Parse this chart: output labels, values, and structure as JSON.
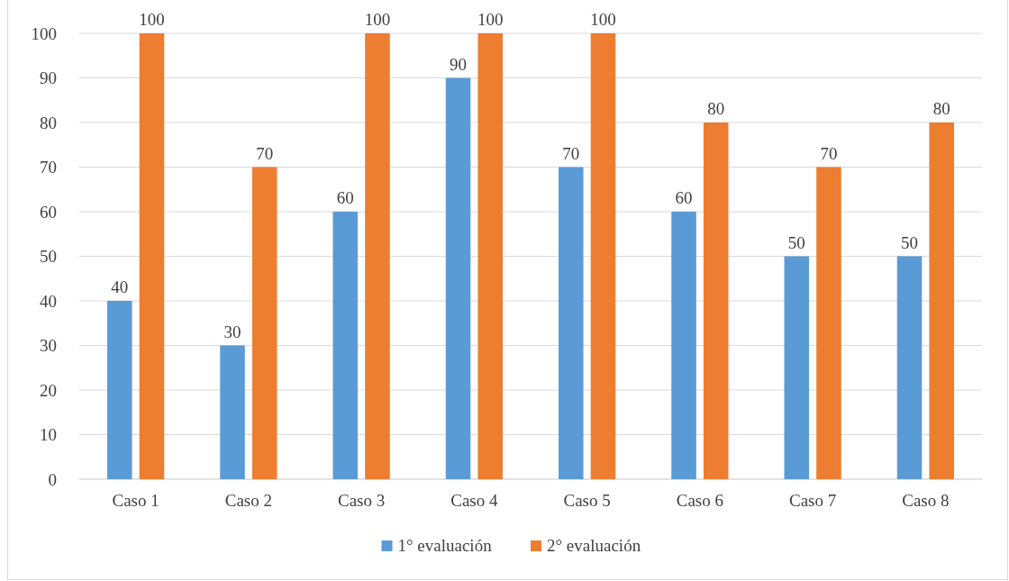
{
  "chart_data": {
    "type": "bar",
    "categories": [
      "Caso 1",
      "Caso 2",
      "Caso 3",
      "Caso 4",
      "Caso 5",
      "Caso 6",
      "Caso 7",
      "Caso 8"
    ],
    "series": [
      {
        "name": "1° evaluación",
        "color": "#5b9bd5",
        "values": [
          40,
          30,
          60,
          90,
          70,
          60,
          50,
          50
        ]
      },
      {
        "name": "2° evaluación",
        "color": "#ed7d31",
        "values": [
          100,
          70,
          100,
          100,
          100,
          80,
          70,
          80
        ]
      }
    ],
    "ylim": [
      0,
      100
    ],
    "yticks": [
      0,
      10,
      20,
      30,
      40,
      50,
      60,
      70,
      80,
      90,
      100
    ],
    "grid": "y",
    "legend": "bottom",
    "data_labels": true
  }
}
